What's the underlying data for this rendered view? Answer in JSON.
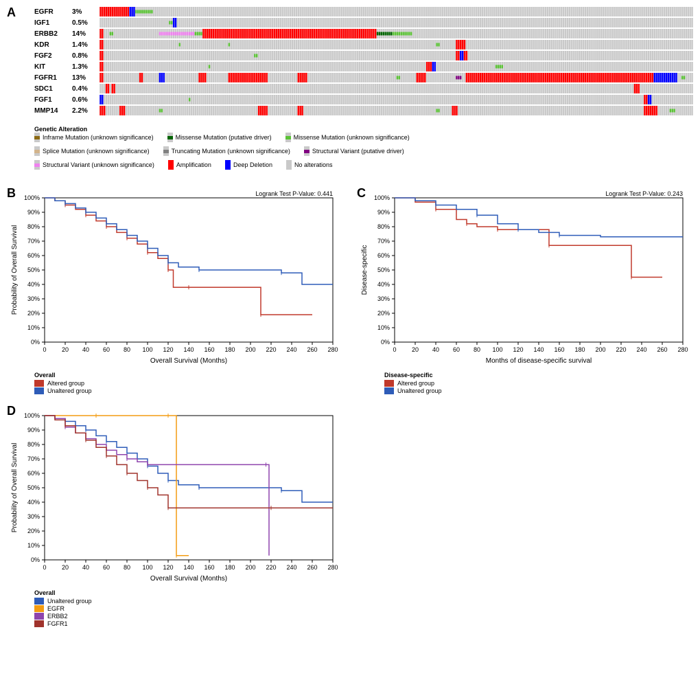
{
  "panelA": {
    "label": "A",
    "n_samples": 300,
    "bar_gap": 0.15,
    "colors": {
      "no_alteration": "#c9c9c9",
      "amplification": "#ff0000",
      "deep_deletion": "#0000ff",
      "missense_driver": "#006400",
      "missense_unknown": "#5bc236",
      "inframe_unknown": "#8b6914",
      "splice_unknown": "#d2b48c",
      "truncating_unknown": "#808080",
      "structural_driver": "#800080",
      "structural_unknown": "#ee82ee"
    },
    "genes": [
      {
        "name": "EGFR",
        "pct": "3%",
        "alterations": [
          {
            "start": 0,
            "end": 15,
            "type": "amplification"
          },
          {
            "start": 15,
            "end": 18,
            "type": "deep_deletion"
          },
          {
            "start": 18,
            "end": 27,
            "type": "missense_unknown"
          }
        ]
      },
      {
        "name": "IGF1",
        "pct": "0.5%",
        "alterations": [
          {
            "start": 35,
            "end": 37,
            "type": "missense_unknown"
          },
          {
            "start": 37,
            "end": 39,
            "type": "deep_deletion"
          }
        ]
      },
      {
        "name": "ERBB2",
        "pct": "14%",
        "alterations": [
          {
            "start": 0,
            "end": 2,
            "type": "amplification"
          },
          {
            "start": 5,
            "end": 7,
            "type": "missense_unknown"
          },
          {
            "start": 30,
            "end": 48,
            "type": "structural_unknown"
          },
          {
            "start": 48,
            "end": 52,
            "type": "missense_unknown"
          },
          {
            "start": 52,
            "end": 140,
            "type": "amplification"
          },
          {
            "start": 140,
            "end": 148,
            "type": "missense_driver"
          },
          {
            "start": 148,
            "end": 158,
            "type": "missense_unknown"
          }
        ]
      },
      {
        "name": "KDR",
        "pct": "1.4%",
        "alterations": [
          {
            "start": 0,
            "end": 2,
            "type": "amplification"
          },
          {
            "start": 40,
            "end": 41,
            "type": "missense_unknown"
          },
          {
            "start": 65,
            "end": 66,
            "type": "missense_unknown"
          },
          {
            "start": 170,
            "end": 172,
            "type": "missense_unknown"
          },
          {
            "start": 180,
            "end": 185,
            "type": "amplification"
          }
        ]
      },
      {
        "name": "FGF2",
        "pct": "0.8%",
        "alterations": [
          {
            "start": 0,
            "end": 2,
            "type": "amplification"
          },
          {
            "start": 78,
            "end": 80,
            "type": "missense_unknown"
          },
          {
            "start": 180,
            "end": 182,
            "type": "amplification"
          },
          {
            "start": 182,
            "end": 184,
            "type": "deep_deletion"
          },
          {
            "start": 184,
            "end": 186,
            "type": "amplification"
          }
        ]
      },
      {
        "name": "KIT",
        "pct": "1.3%",
        "alterations": [
          {
            "start": 0,
            "end": 2,
            "type": "amplification"
          },
          {
            "start": 55,
            "end": 56,
            "type": "missense_unknown"
          },
          {
            "start": 165,
            "end": 168,
            "type": "amplification"
          },
          {
            "start": 168,
            "end": 170,
            "type": "deep_deletion"
          },
          {
            "start": 200,
            "end": 204,
            "type": "missense_unknown"
          }
        ]
      },
      {
        "name": "FGFR1",
        "pct": "13%",
        "alterations": [
          {
            "start": 0,
            "end": 2,
            "type": "amplification"
          },
          {
            "start": 20,
            "end": 22,
            "type": "amplification"
          },
          {
            "start": 30,
            "end": 33,
            "type": "deep_deletion"
          },
          {
            "start": 50,
            "end": 54,
            "type": "amplification"
          },
          {
            "start": 65,
            "end": 85,
            "type": "amplification"
          },
          {
            "start": 100,
            "end": 105,
            "type": "amplification"
          },
          {
            "start": 150,
            "end": 152,
            "type": "missense_unknown"
          },
          {
            "start": 160,
            "end": 165,
            "type": "amplification"
          },
          {
            "start": 180,
            "end": 183,
            "type": "structural_driver"
          },
          {
            "start": 185,
            "end": 280,
            "type": "amplification"
          },
          {
            "start": 280,
            "end": 292,
            "type": "deep_deletion"
          },
          {
            "start": 294,
            "end": 296,
            "type": "missense_unknown"
          }
        ]
      },
      {
        "name": "SDC1",
        "pct": "0.4%",
        "alterations": [
          {
            "start": 3,
            "end": 5,
            "type": "amplification"
          },
          {
            "start": 6,
            "end": 8,
            "type": "amplification"
          },
          {
            "start": 270,
            "end": 273,
            "type": "amplification"
          }
        ]
      },
      {
        "name": "FGF1",
        "pct": "0.6%",
        "alterations": [
          {
            "start": 0,
            "end": 2,
            "type": "deep_deletion"
          },
          {
            "start": 45,
            "end": 46,
            "type": "missense_unknown"
          },
          {
            "start": 275,
            "end": 277,
            "type": "amplification"
          },
          {
            "start": 277,
            "end": 279,
            "type": "deep_deletion"
          }
        ]
      },
      {
        "name": "MMP14",
        "pct": "2.2%",
        "alterations": [
          {
            "start": 0,
            "end": 3,
            "type": "amplification"
          },
          {
            "start": 10,
            "end": 13,
            "type": "amplification"
          },
          {
            "start": 30,
            "end": 32,
            "type": "missense_unknown"
          },
          {
            "start": 80,
            "end": 85,
            "type": "amplification"
          },
          {
            "start": 100,
            "end": 103,
            "type": "amplification"
          },
          {
            "start": 170,
            "end": 172,
            "type": "missense_unknown"
          },
          {
            "start": 178,
            "end": 181,
            "type": "amplification"
          },
          {
            "start": 275,
            "end": 282,
            "type": "amplification"
          },
          {
            "start": 288,
            "end": 291,
            "type": "missense_unknown"
          }
        ]
      }
    ],
    "legend_title": "Genetic Alteration",
    "legend_items": [
      [
        {
          "label": "Inframe Mutation (unknown significance)",
          "type": "inframe_unknown",
          "mut": true
        },
        {
          "label": "Missense Mutation (putative driver)",
          "type": "missense_driver",
          "mut": true
        },
        {
          "label": "Missense Mutation (unknown significance)",
          "type": "missense_unknown",
          "mut": true
        }
      ],
      [
        {
          "label": "Splice Mutation (unknown significance)",
          "type": "splice_unknown",
          "mut": true
        },
        {
          "label": "Truncating Mutation (unknown significance)",
          "type": "truncating_unknown",
          "mut": true
        },
        {
          "label": "Structural Variant (putative driver)",
          "type": "structural_driver",
          "mut": true
        }
      ],
      [
        {
          "label": "Structural Variant (unknown significance)",
          "type": "structural_unknown",
          "mut": true
        },
        {
          "label": "Amplification",
          "type": "amplification",
          "mut": false
        },
        {
          "label": "Deep Deletion",
          "type": "deep_deletion",
          "mut": false
        },
        {
          "label": "No alterations",
          "type": "no_alteration",
          "mut": false
        }
      ]
    ]
  },
  "panelB": {
    "label": "B",
    "pvalue": "Logrank Test P-Value: 0.441",
    "xlabel": "Overall Survival (Months)",
    "ylabel": "Probability of Overall Survival",
    "xlim": [
      0,
      280
    ],
    "xtick_step": 20,
    "ylim": [
      0,
      100
    ],
    "ytick_step": 10,
    "legend_title": "Overall",
    "series": [
      {
        "name": "Altered group",
        "color": "#c0392b",
        "points": [
          [
            0,
            100
          ],
          [
            10,
            98
          ],
          [
            20,
            95
          ],
          [
            30,
            92
          ],
          [
            40,
            88
          ],
          [
            50,
            84
          ],
          [
            60,
            80
          ],
          [
            70,
            76
          ],
          [
            80,
            72
          ],
          [
            90,
            68
          ],
          [
            100,
            62
          ],
          [
            110,
            58
          ],
          [
            120,
            50
          ],
          [
            125,
            38
          ],
          [
            140,
            38
          ],
          [
            180,
            38
          ],
          [
            210,
            19
          ],
          [
            260,
            19
          ]
        ]
      },
      {
        "name": "Unaltered group",
        "color": "#2e5cb8",
        "points": [
          [
            0,
            100
          ],
          [
            10,
            98
          ],
          [
            20,
            96
          ],
          [
            30,
            93
          ],
          [
            40,
            90
          ],
          [
            50,
            86
          ],
          [
            60,
            82
          ],
          [
            70,
            78
          ],
          [
            80,
            74
          ],
          [
            90,
            70
          ],
          [
            100,
            65
          ],
          [
            110,
            60
          ],
          [
            120,
            55
          ],
          [
            130,
            52
          ],
          [
            150,
            50
          ],
          [
            200,
            50
          ],
          [
            230,
            48
          ],
          [
            250,
            40
          ],
          [
            280,
            40
          ]
        ]
      }
    ]
  },
  "panelC": {
    "label": "C",
    "pvalue": "Logrank Test P-Value: 0.243",
    "xlabel": "Months of disease-specific survival",
    "ylabel": "Disease-specific",
    "xlim": [
      0,
      280
    ],
    "xtick_step": 20,
    "ylim": [
      0,
      100
    ],
    "ytick_step": 10,
    "legend_title": "Disease-specific",
    "series": [
      {
        "name": "Altered group",
        "color": "#c0392b",
        "points": [
          [
            0,
            100
          ],
          [
            20,
            97
          ],
          [
            40,
            92
          ],
          [
            60,
            85
          ],
          [
            70,
            82
          ],
          [
            80,
            80
          ],
          [
            100,
            78
          ],
          [
            120,
            78
          ],
          [
            150,
            67
          ],
          [
            200,
            67
          ],
          [
            230,
            45
          ],
          [
            260,
            45
          ]
        ]
      },
      {
        "name": "Unaltered group",
        "color": "#2e5cb8",
        "points": [
          [
            0,
            100
          ],
          [
            20,
            98
          ],
          [
            40,
            95
          ],
          [
            60,
            92
          ],
          [
            80,
            88
          ],
          [
            100,
            82
          ],
          [
            120,
            78
          ],
          [
            140,
            76
          ],
          [
            160,
            74
          ],
          [
            200,
            73
          ],
          [
            280,
            73
          ]
        ]
      }
    ]
  },
  "panelD": {
    "label": "D",
    "xlabel": "Overall Survival (Months)",
    "ylabel": "Probability of Overall Survival",
    "xlim": [
      0,
      280
    ],
    "xtick_step": 20,
    "ylim": [
      0,
      100
    ],
    "ytick_step": 10,
    "legend_title": "Overall",
    "series": [
      {
        "name": "Unaltered group",
        "color": "#2e5cb8",
        "points": [
          [
            0,
            100
          ],
          [
            10,
            98
          ],
          [
            20,
            96
          ],
          [
            30,
            93
          ],
          [
            40,
            90
          ],
          [
            50,
            86
          ],
          [
            60,
            82
          ],
          [
            70,
            78
          ],
          [
            80,
            74
          ],
          [
            90,
            70
          ],
          [
            100,
            65
          ],
          [
            110,
            60
          ],
          [
            120,
            55
          ],
          [
            130,
            52
          ],
          [
            150,
            50
          ],
          [
            200,
            50
          ],
          [
            230,
            48
          ],
          [
            250,
            40
          ],
          [
            280,
            40
          ]
        ]
      },
      {
        "name": "EGFR",
        "color": "#f39c12",
        "points": [
          [
            0,
            100
          ],
          [
            10,
            100
          ],
          [
            50,
            100
          ],
          [
            100,
            100
          ],
          [
            120,
            100
          ],
          [
            125,
            100
          ],
          [
            128,
            3
          ],
          [
            140,
            3
          ]
        ]
      },
      {
        "name": "ERBB2",
        "color": "#8e44ad",
        "points": [
          [
            0,
            100
          ],
          [
            10,
            98
          ],
          [
            20,
            92
          ],
          [
            30,
            88
          ],
          [
            40,
            84
          ],
          [
            50,
            80
          ],
          [
            60,
            76
          ],
          [
            70,
            73
          ],
          [
            80,
            70
          ],
          [
            90,
            68
          ],
          [
            100,
            66
          ],
          [
            130,
            66
          ],
          [
            215,
            66
          ],
          [
            218,
            3
          ]
        ]
      },
      {
        "name": "FGFR1",
        "color": "#a0332c",
        "points": [
          [
            0,
            100
          ],
          [
            10,
            97
          ],
          [
            20,
            93
          ],
          [
            30,
            88
          ],
          [
            40,
            83
          ],
          [
            50,
            78
          ],
          [
            60,
            72
          ],
          [
            70,
            66
          ],
          [
            80,
            60
          ],
          [
            90,
            55
          ],
          [
            100,
            50
          ],
          [
            110,
            45
          ],
          [
            120,
            36
          ],
          [
            150,
            36
          ],
          [
            220,
            36
          ],
          [
            240,
            36
          ],
          [
            280,
            36
          ]
        ]
      }
    ]
  }
}
